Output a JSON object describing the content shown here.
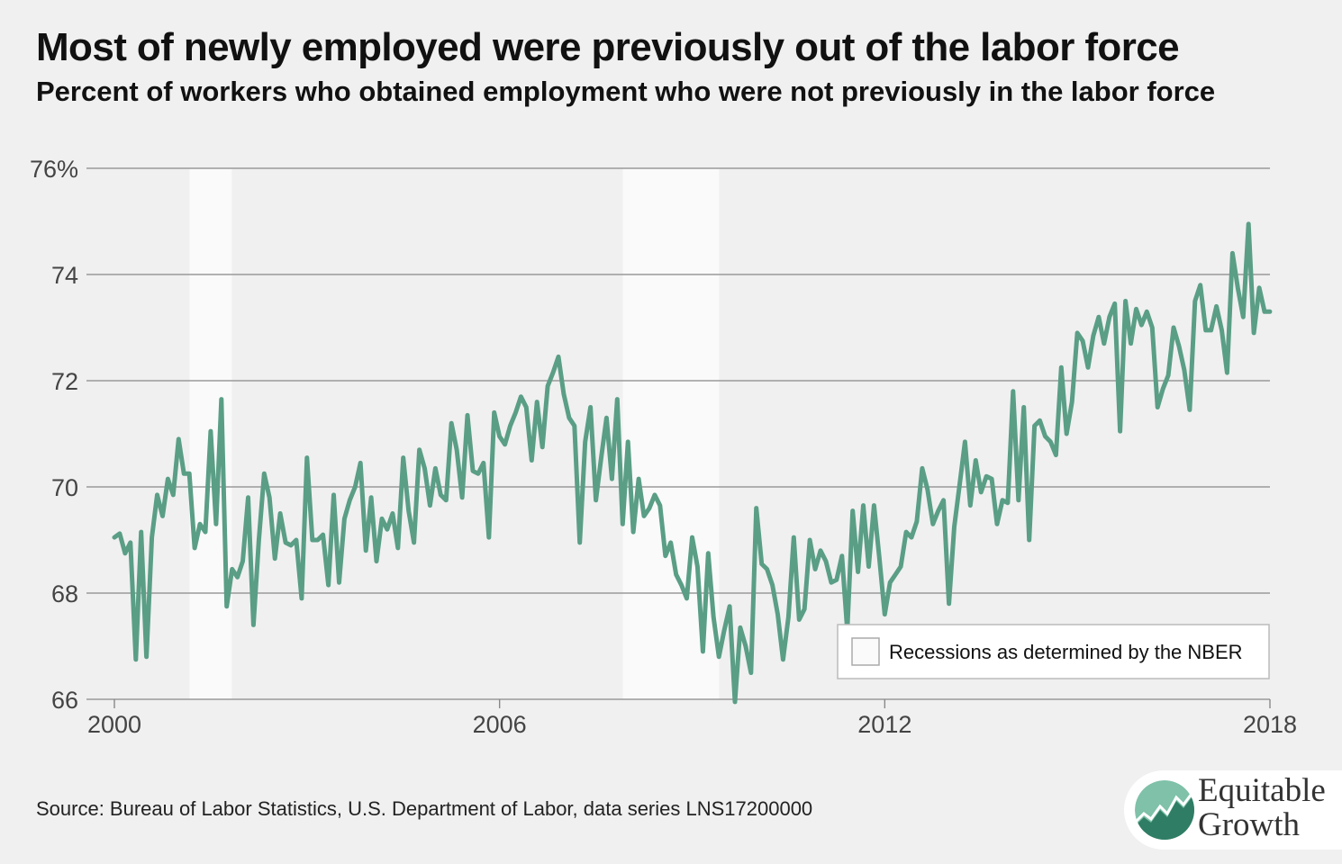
{
  "header": {
    "title": "Most of newly employed were previously out of the labor force",
    "subtitle": "Percent of workers who obtained employment who were not previously in the labor force"
  },
  "footer": {
    "source": "Source: Bureau of Labor Statistics, U.S. Department of Labor, data series LNS17200000"
  },
  "logo": {
    "line1": "Equitable",
    "line2": "Growth"
  },
  "colors": {
    "line": "#5a9e86",
    "recession": "#fafafa",
    "grid": "#999999",
    "background": "#f0f0f0",
    "logo_dark": "#2f7d64",
    "logo_light": "#7fc1a9"
  },
  "chart_data": {
    "type": "line",
    "title": "Most of newly employed were previously out of the labor force",
    "subtitle": "Percent of workers who obtained employment who were not previously in the labor force",
    "xlabel": "",
    "ylabel": "",
    "xlim": [
      2000,
      2018
    ],
    "ylim": [
      66,
      76
    ],
    "x_ticks": [
      2000,
      2006,
      2012,
      2018
    ],
    "x_tick_labels": [
      "2000",
      "2006",
      "2012",
      "2018"
    ],
    "y_ticks": [
      66,
      68,
      70,
      72,
      74,
      76
    ],
    "y_tick_labels": [
      "66",
      "68",
      "70",
      "72",
      "74",
      "76%"
    ],
    "grid": true,
    "legend": {
      "label": "Recessions as determined by the NBER",
      "position": "bottom-right"
    },
    "recessions": [
      {
        "start": 2001.17,
        "end": 2001.83
      },
      {
        "start": 2007.92,
        "end": 2009.42
      }
    ],
    "series": [
      {
        "x_start": 2000.0,
        "x_step": 0.08333,
        "values": [
          69.05,
          69.12,
          68.75,
          68.95,
          66.75,
          69.15,
          66.8,
          69.05,
          69.85,
          69.45,
          70.15,
          69.85,
          70.9,
          70.25,
          70.25,
          68.85,
          69.3,
          69.15,
          71.05,
          69.3,
          71.65,
          67.75,
          68.45,
          68.3,
          68.6,
          69.8,
          67.4,
          69.0,
          70.25,
          69.8,
          68.65,
          69.5,
          68.95,
          68.9,
          69.0,
          67.9,
          70.55,
          69.0,
          69.0,
          69.1,
          68.15,
          69.85,
          68.2,
          69.4,
          69.75,
          70.0,
          70.45,
          68.8,
          69.8,
          68.6,
          69.4,
          69.2,
          69.5,
          68.85,
          70.55,
          69.55,
          68.95,
          70.7,
          70.35,
          69.65,
          70.35,
          69.85,
          69.75,
          71.2,
          70.7,
          69.8,
          71.35,
          70.3,
          70.25,
          70.45,
          69.05,
          71.4,
          70.95,
          70.8,
          71.15,
          71.4,
          71.7,
          71.5,
          70.5,
          71.6,
          70.75,
          71.9,
          72.15,
          72.45,
          71.75,
          71.3,
          71.15,
          68.95,
          70.85,
          71.5,
          69.75,
          70.55,
          71.3,
          70.15,
          71.65,
          69.3,
          70.85,
          69.15,
          70.15,
          69.45,
          69.6,
          69.85,
          69.65,
          68.7,
          68.95,
          68.35,
          68.15,
          67.9,
          69.05,
          68.5,
          66.9,
          68.75,
          67.55,
          66.8,
          67.3,
          67.75,
          65.95,
          67.35,
          67.0,
          66.5,
          69.6,
          68.55,
          68.45,
          68.15,
          67.6,
          66.75,
          67.55,
          69.05,
          67.5,
          67.7,
          69.0,
          68.45,
          68.8,
          68.6,
          68.2,
          68.25,
          68.7,
          67.3,
          69.55,
          68.4,
          69.65,
          68.5,
          69.65,
          68.65,
          67.6,
          68.2,
          68.35,
          68.5,
          69.15,
          69.05,
          69.35,
          70.35,
          69.95,
          69.3,
          69.55,
          69.75,
          67.8,
          69.25,
          70.05,
          70.85,
          69.65,
          70.5,
          69.9,
          70.2,
          70.15,
          69.3,
          69.75,
          69.7,
          71.8,
          69.75,
          71.5,
          69.0,
          71.15,
          71.25,
          70.95,
          70.85,
          70.6,
          72.25,
          71.0,
          71.6,
          72.9,
          72.75,
          72.25,
          72.85,
          73.2,
          72.7,
          73.2,
          73.45,
          71.05,
          73.5,
          72.7,
          73.35,
          73.05,
          73.3,
          73.0,
          71.5,
          71.85,
          72.1,
          73.0,
          72.65,
          72.2,
          71.45,
          73.5,
          73.8,
          72.95,
          72.95,
          73.4,
          72.95,
          72.15,
          74.4,
          73.75,
          73.2,
          74.95,
          72.9,
          73.75,
          73.3,
          73.3
        ]
      }
    ]
  }
}
